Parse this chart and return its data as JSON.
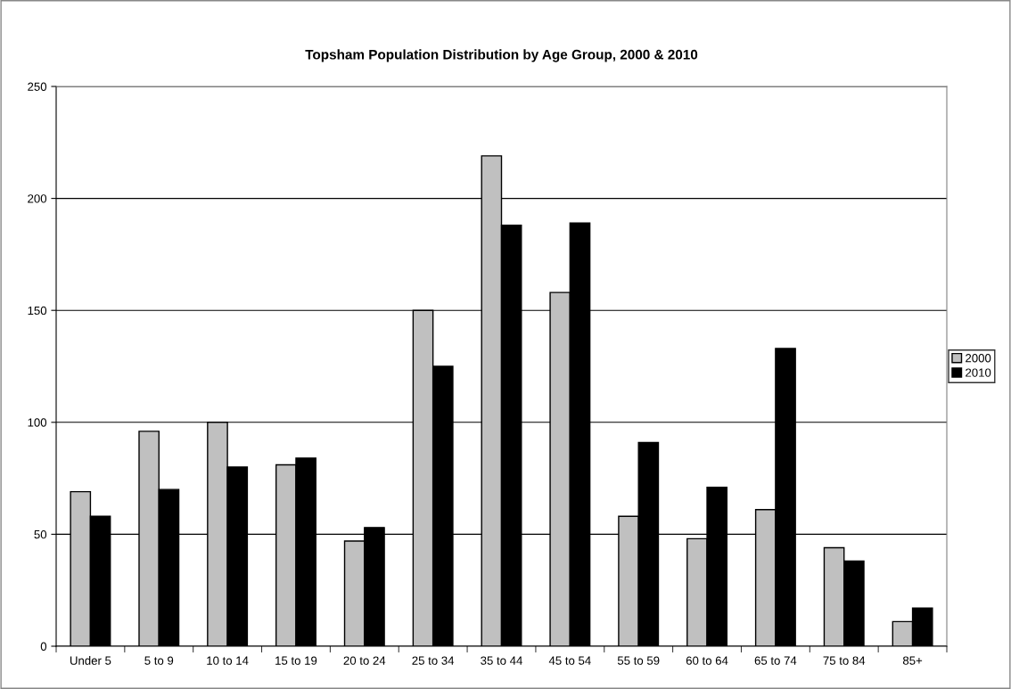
{
  "chart_data": {
    "type": "bar",
    "title": "Topsham Population Distribution by Age Group, 2000 & 2010",
    "categories": [
      "Under 5",
      "5 to 9",
      "10 to 14",
      "15 to 19",
      "20 to 24",
      "25 to 34",
      "35 to 44",
      "45 to 54",
      "55 to 59",
      "60 to 64",
      "65 to 74",
      "75 to 84",
      "85+"
    ],
    "series": [
      {
        "name": "2000",
        "color": "#c0c0c0",
        "values": [
          69,
          96,
          100,
          81,
          47,
          150,
          219,
          158,
          58,
          48,
          61,
          44,
          11
        ]
      },
      {
        "name": "2010",
        "color": "#000000",
        "values": [
          58,
          70,
          80,
          84,
          53,
          125,
          188,
          189,
          91,
          71,
          133,
          38,
          17
        ]
      }
    ],
    "ylim": [
      0,
      250
    ],
    "yticks": [
      0,
      50,
      100,
      150,
      200,
      250
    ],
    "grid": "y",
    "legend": "right"
  }
}
